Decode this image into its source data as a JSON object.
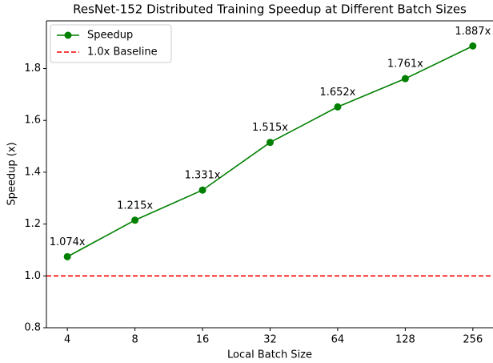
{
  "chart_data": {
    "type": "line",
    "title": "ResNet-152 Distributed Training Speedup at Different Batch Sizes",
    "xlabel": "Local Batch Size",
    "ylabel": "Speedup (x)",
    "categories": [
      "4",
      "8",
      "16",
      "32",
      "64",
      "128",
      "256"
    ],
    "series": [
      {
        "name": "Speedup",
        "color": "#008000",
        "values": [
          1.074,
          1.215,
          1.331,
          1.515,
          1.652,
          1.761,
          1.887
        ],
        "value_labels": [
          "1.074x",
          "1.215x",
          "1.331x",
          "1.515x",
          "1.652x",
          "1.761x",
          "1.887x"
        ]
      }
    ],
    "baseline": {
      "name": "1.0x Baseline",
      "value": 1,
      "color": "#ff0000"
    },
    "ylim": [
      0.8,
      1.984
    ],
    "yticks": [
      0.8,
      {
        "value": 1,
        "label": "1.0"
      },
      1.2,
      1.4,
      1.6,
      1.8
    ],
    "legend": "upper left"
  }
}
